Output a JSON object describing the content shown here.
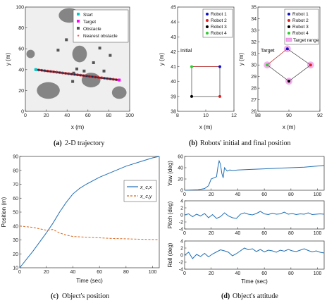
{
  "chart_data": [
    {
      "type": "scatter",
      "panel": "a",
      "caption_label": "(a)",
      "caption_text": "2-D trajectory",
      "xlabel": "x (m)",
      "ylabel": "y (m)",
      "xlim": [
        0,
        100
      ],
      "ylim": [
        0,
        100
      ],
      "xticks": [
        "0",
        "20",
        "40",
        "60",
        "80",
        "100"
      ],
      "yticks": [
        "0",
        "20",
        "40",
        "60",
        "80",
        "100"
      ],
      "legend": [
        "Start",
        "Target",
        "Obstacle",
        "Nearest obstacle"
      ],
      "legend_position": "top-right",
      "start": [
        10,
        40
      ],
      "target": [
        90,
        30
      ],
      "series": [
        {
          "name": "Start",
          "x": [
            10
          ],
          "y": [
            40
          ]
        },
        {
          "name": "Target",
          "x": [
            90
          ],
          "y": [
            30
          ]
        },
        {
          "name": "Nearest obstacle",
          "x": [
            22,
            26,
            30,
            34,
            38,
            42,
            46,
            50,
            54,
            58,
            62,
            66,
            70,
            74
          ],
          "y": [
            38.5,
            38,
            37.5,
            37,
            36.5,
            36,
            35.5,
            35,
            34.5,
            34,
            33.5,
            33,
            32.5,
            32
          ]
        }
      ],
      "colors": {
        "start": "#00cccc",
        "target": "#ff00ff",
        "obstacle": "#555555",
        "nearest": "#e81c1c",
        "trajectory": "#1b2a4a"
      }
    },
    {
      "type": "scatter",
      "panel": "b",
      "caption_label": "(b)",
      "caption_text": "Robots' initial and final position",
      "subplots": [
        {
          "name": "Initial",
          "xlabel": "x (m)",
          "ylabel": "y (m)",
          "xlim": [
            8,
            12
          ],
          "ylim": [
            38,
            45
          ],
          "xticks": [
            "8",
            "10",
            "12"
          ],
          "yticks": [
            "38",
            "39",
            "40",
            "41",
            "42",
            "43",
            "44",
            "45"
          ],
          "legend": [
            "Robot 1",
            "Robot 2",
            "Robot 3",
            "Robot 4"
          ],
          "legend_position": "top-right",
          "robots": [
            {
              "name": "Robot 1",
              "x": 11,
              "y": 41,
              "color": "#1010c0"
            },
            {
              "name": "Robot 2",
              "x": 11,
              "y": 39,
              "color": "#e02020"
            },
            {
              "name": "Robot 3",
              "x": 9,
              "y": 39,
              "color": "#000000"
            },
            {
              "name": "Robot 4",
              "x": 9,
              "y": 41,
              "color": "#2ecc2e"
            }
          ]
        },
        {
          "name": "Target",
          "xlabel": "x (m)",
          "ylabel": "y (m)",
          "xlim": [
            88,
            92
          ],
          "ylim": [
            26,
            35
          ],
          "xticks": [
            "88",
            "90",
            "92"
          ],
          "yticks": [
            "26",
            "27",
            "28",
            "29",
            "30",
            "31",
            "32",
            "33",
            "34",
            "35"
          ],
          "legend": [
            "Robot 1",
            "Robot 2",
            "Robot 3",
            "Robot 4",
            "Target range"
          ],
          "legend_position": "top-right",
          "robots": [
            {
              "name": "Robot 1",
              "x": 89.9,
              "y": 31.4,
              "color": "#1010c0"
            },
            {
              "name": "Robot 2",
              "x": 91.4,
              "y": 30,
              "color": "#e02020"
            },
            {
              "name": "Robot 3",
              "x": 90,
              "y": 28.6,
              "color": "#000000"
            },
            {
              "name": "Robot 4",
              "x": 88.6,
              "y": 30,
              "color": "#2ecc2e"
            }
          ]
        }
      ]
    },
    {
      "type": "line",
      "panel": "c",
      "caption_label": "(c)",
      "caption_text": "Object's position",
      "xlabel": "Time (sec)",
      "ylabel": "Position (m)",
      "xlim": [
        0,
        105
      ],
      "ylim": [
        10,
        90
      ],
      "xticks": [
        "0",
        "20",
        "40",
        "60",
        "80",
        "100"
      ],
      "yticks": [
        "10",
        "20",
        "30",
        "40",
        "50",
        "60",
        "70",
        "80",
        "90"
      ],
      "legend_position": "right",
      "series": [
        {
          "name": "x_c,x",
          "color": "#1f6fb5",
          "dash": "solid",
          "x": [
            0,
            10,
            20,
            25,
            30,
            35,
            40,
            45,
            50,
            60,
            70,
            80,
            90,
            100,
            105
          ],
          "y": [
            10,
            22,
            35,
            42,
            50,
            57,
            63,
            67,
            70,
            75,
            79,
            83,
            86,
            89,
            90
          ]
        },
        {
          "name": "x_c,y",
          "color": "#d9651c",
          "dash": "dashed",
          "x": [
            0,
            5,
            10,
            15,
            20,
            25,
            30,
            35,
            40,
            50,
            60,
            70,
            80,
            90,
            100,
            105
          ],
          "y": [
            40,
            39.5,
            39,
            38,
            37,
            37.5,
            35,
            33.5,
            32.5,
            32,
            31.5,
            31,
            30.8,
            30.5,
            30.3,
            30.2
          ]
        }
      ]
    },
    {
      "type": "line",
      "panel": "d",
      "caption_label": "(d)",
      "caption_text": "Object's attitude",
      "subplots": [
        {
          "ylabel": "Yaw (deg)",
          "xlim": [
            0,
            105
          ],
          "ylim": [
            0,
            60
          ],
          "yticks": [
            "0",
            "20",
            "40",
            "60"
          ],
          "xticks": [
            "0",
            "20",
            "40",
            "60",
            "80",
            "100"
          ],
          "series": [
            {
              "color": "#1f6fb5",
              "x": [
                0,
                5,
                10,
                15,
                18,
                20,
                22,
                24,
                25,
                26,
                27,
                28,
                29,
                30,
                32,
                34,
                36,
                40,
                50,
                60,
                70,
                80,
                90,
                100,
                105
              ],
              "y": [
                0,
                0.5,
                1,
                3,
                8,
                20,
                22,
                24,
                40,
                52,
                46,
                30,
                22,
                40,
                34,
                36,
                35,
                36,
                37,
                38,
                39,
                40,
                41,
                43,
                44
              ]
            }
          ]
        },
        {
          "ylabel": "Pitch (deg)",
          "xlim": [
            0,
            105
          ],
          "ylim": [
            -4,
            4
          ],
          "yticks": [
            "-4",
            "-2",
            "0",
            "2",
            "4"
          ],
          "xticks": [
            "0",
            "20",
            "40",
            "60",
            "80",
            "100"
          ],
          "series": [
            {
              "color": "#1f6fb5",
              "x": [
                0,
                3,
                6,
                9,
                12,
                15,
                18,
                21,
                24,
                27,
                30,
                33,
                36,
                39,
                42,
                45,
                48,
                51,
                54,
                57,
                60,
                63,
                66,
                69,
                72,
                75,
                78,
                81,
                84,
                87,
                90,
                93,
                96,
                99,
                102,
                105
              ],
              "y": [
                0,
                0.3,
                -0.5,
                0.2,
                -0.3,
                0.4,
                -0.8,
                0.1,
                -1,
                -0.5,
                0.6,
                -0.3,
                -0.8,
                -1,
                0.2,
                0.6,
                0.2,
                0,
                0.4,
                1,
                0.3,
                0.1,
                0.5,
                0.2,
                0.3,
                0.8,
                0.2,
                0.4,
                0.1,
                0.3,
                0.2,
                0.6,
                0.1,
                0.2,
                0.3,
                0.2
              ]
            }
          ]
        },
        {
          "ylabel": "Roll (deg)",
          "xlabel": "Time (sec)",
          "xlim": [
            0,
            105
          ],
          "ylim": [
            -4,
            4
          ],
          "yticks": [
            "-4",
            "-2",
            "0",
            "2",
            "4"
          ],
          "xticks": [
            "0",
            "20",
            "40",
            "60",
            "80",
            "100"
          ],
          "series": [
            {
              "color": "#1f6fb5",
              "x": [
                0,
                3,
                6,
                9,
                12,
                15,
                18,
                21,
                24,
                27,
                30,
                33,
                36,
                39,
                42,
                45,
                48,
                51,
                54,
                57,
                60,
                63,
                66,
                69,
                72,
                75,
                78,
                81,
                84,
                87,
                90,
                93,
                96,
                99,
                102,
                105
              ],
              "y": [
                0,
                0.8,
                -1,
                0.2,
                -0.4,
                0.5,
                -0.5,
                0.3,
                0.9,
                1.5,
                1.2,
                0.8,
                -0.2,
                0.4,
                1.2,
                2,
                1.5,
                1.8,
                1,
                1.6,
                0.9,
                1.4,
                1.2,
                0.8,
                1.4,
                1.1,
                1.6,
                1.2,
                1,
                1.4,
                1.8,
                1.3,
                0.9,
                1.2,
                0.8,
                0.6
              ]
            }
          ]
        }
      ]
    }
  ]
}
